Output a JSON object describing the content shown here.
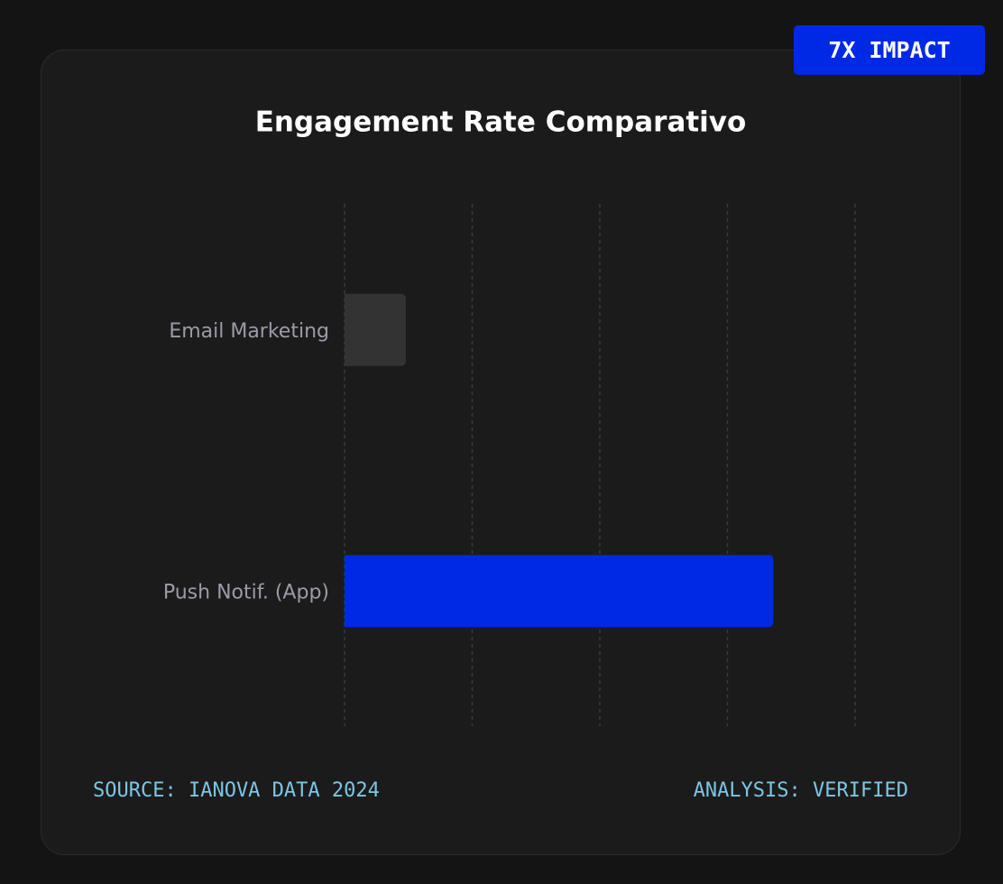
{
  "badge": "7X IMPACT",
  "chart_data": {
    "type": "barh",
    "title": "Engagement Rate Comparativo",
    "categories": [
      "Email Marketing",
      "Push Notif. (App)"
    ],
    "values": [
      4.8,
      33.6
    ],
    "colors": [
      "#333333",
      "#0029e6"
    ],
    "xlim": [
      0,
      40
    ],
    "xticks": [
      0,
      10,
      20,
      30,
      40
    ],
    "grid": true
  },
  "footer": {
    "source": "SOURCE: IANOVA DATA 2024",
    "analysis": "ANALYSIS: VERIFIED"
  }
}
